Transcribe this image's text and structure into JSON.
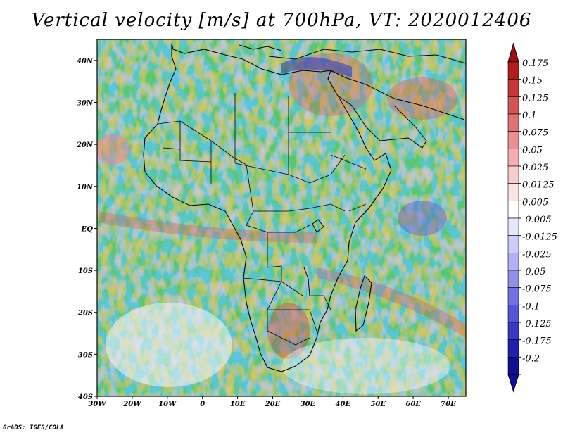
{
  "title": "Vertical velocity [m/s] at 700hPa, VT: 2020012406",
  "credit": "GrADS: IGES/COLA",
  "map": {
    "lon_range": [
      -30,
      75
    ],
    "lat_range": [
      -40,
      45
    ],
    "lat_ticks": [
      {
        "value": 40,
        "label": "40N"
      },
      {
        "value": 30,
        "label": "30N"
      },
      {
        "value": 20,
        "label": "20N"
      },
      {
        "value": 10,
        "label": "10N"
      },
      {
        "value": 0,
        "label": "EQ"
      },
      {
        "value": -10,
        "label": "10S"
      },
      {
        "value": -20,
        "label": "20S"
      },
      {
        "value": -30,
        "label": "30S"
      },
      {
        "value": -40,
        "label": "40S"
      }
    ],
    "lon_ticks": [
      {
        "value": -30,
        "label": "30W"
      },
      {
        "value": -20,
        "label": "20W"
      },
      {
        "value": -10,
        "label": "10W"
      },
      {
        "value": 0,
        "label": "0"
      },
      {
        "value": 10,
        "label": "10E"
      },
      {
        "value": 20,
        "label": "20E"
      },
      {
        "value": 30,
        "label": "30E"
      },
      {
        "value": 40,
        "label": "40E"
      },
      {
        "value": 50,
        "label": "50E"
      },
      {
        "value": 60,
        "label": "60E"
      },
      {
        "value": 70,
        "label": "70E"
      }
    ]
  },
  "colorbar": {
    "levels": [
      {
        "label": "0.175",
        "color": "#b41c1c"
      },
      {
        "label": "0.15",
        "color": "#c43838"
      },
      {
        "label": "0.125",
        "color": "#d45454"
      },
      {
        "label": "0.1",
        "color": "#e07272"
      },
      {
        "label": "0.075",
        "color": "#ea9090"
      },
      {
        "label": "0.05",
        "color": "#f2b0b0"
      },
      {
        "label": "0.025",
        "color": "#f8cccc"
      },
      {
        "label": "0.0125",
        "color": "#fce4e4"
      },
      {
        "label": "0.005",
        "color": "#ffffff"
      },
      {
        "label": "-0.005",
        "color": "#e6e6fc"
      },
      {
        "label": "-0.0125",
        "color": "#ccccf8"
      },
      {
        "label": "-0.025",
        "color": "#b0b0f2"
      },
      {
        "label": "-0.05",
        "color": "#9090ea"
      },
      {
        "label": "-0.075",
        "color": "#7272e0"
      },
      {
        "label": "-0.1",
        "color": "#5454d4"
      },
      {
        "label": "-0.125",
        "color": "#3838c4"
      },
      {
        "label": "-0.175",
        "color": "#2020b0"
      },
      {
        "label": "-0.2",
        "color": "#10108c"
      }
    ],
    "top_arrow_color": "#a01010",
    "bottom_arrow_color": "#1010a0"
  }
}
